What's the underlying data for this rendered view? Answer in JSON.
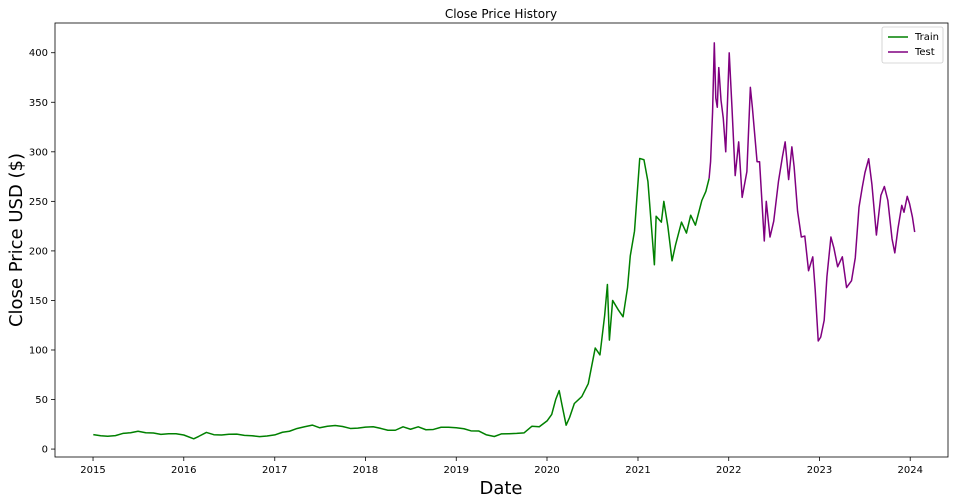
{
  "chart_data": {
    "type": "line",
    "title": "Close Price History",
    "xlabel": "Date",
    "ylabel": "Close Price USD ($)",
    "xlim": [
      "2014-08-01",
      "2024-06-01"
    ],
    "ylim": [
      -8,
      430
    ],
    "x_ticks": [
      "2015-01-01",
      "2016-01-01",
      "2017-01-01",
      "2018-01-01",
      "2019-01-01",
      "2020-01-01",
      "2021-01-01",
      "2022-01-01",
      "2023-01-01",
      "2024-01-01"
    ],
    "x_tick_labels": [
      "2015",
      "2016",
      "2017",
      "2018",
      "2019",
      "2020",
      "2021",
      "2022",
      "2023",
      "2024"
    ],
    "y_ticks": [
      0,
      50,
      100,
      150,
      200,
      250,
      300,
      350,
      400
    ],
    "y_tick_labels": [
      "0",
      "50",
      "100",
      "150",
      "200",
      "250",
      "300",
      "350",
      "400"
    ],
    "grid": false,
    "legend_position": "top-right",
    "series": [
      {
        "name": "Train",
        "color": "#008000",
        "points": [
          [
            "2015-01-02",
            14.6
          ],
          [
            "2015-02-01",
            13.5
          ],
          [
            "2015-03-01",
            13.0
          ],
          [
            "2015-04-01",
            13.6
          ],
          [
            "2015-05-01",
            15.8
          ],
          [
            "2015-06-01",
            16.5
          ],
          [
            "2015-07-01",
            18.0
          ],
          [
            "2015-08-01",
            16.5
          ],
          [
            "2015-09-01",
            16.2
          ],
          [
            "2015-10-01",
            14.8
          ],
          [
            "2015-11-01",
            15.4
          ],
          [
            "2015-12-01",
            15.5
          ],
          [
            "2016-01-01",
            14.2
          ],
          [
            "2016-02-10",
            10.4
          ],
          [
            "2016-03-01",
            12.8
          ],
          [
            "2016-04-01",
            16.8
          ],
          [
            "2016-05-01",
            14.5
          ],
          [
            "2016-06-01",
            14.2
          ],
          [
            "2016-07-01",
            15.0
          ],
          [
            "2016-08-01",
            15.1
          ],
          [
            "2016-09-01",
            13.8
          ],
          [
            "2016-10-01",
            13.5
          ],
          [
            "2016-11-01",
            12.6
          ],
          [
            "2016-12-01",
            13.2
          ],
          [
            "2017-01-01",
            14.3
          ],
          [
            "2017-02-01",
            17.0
          ],
          [
            "2017-03-01",
            18.0
          ],
          [
            "2017-04-01",
            20.8
          ],
          [
            "2017-05-01",
            22.5
          ],
          [
            "2017-06-01",
            24.2
          ],
          [
            "2017-07-01",
            21.5
          ],
          [
            "2017-08-01",
            23.0
          ],
          [
            "2017-09-01",
            23.8
          ],
          [
            "2017-10-01",
            22.8
          ],
          [
            "2017-11-01",
            20.8
          ],
          [
            "2017-12-01",
            21.1
          ],
          [
            "2018-01-01",
            22.2
          ],
          [
            "2018-02-01",
            22.5
          ],
          [
            "2018-03-01",
            21.0
          ],
          [
            "2018-04-01",
            19.0
          ],
          [
            "2018-05-01",
            19.0
          ],
          [
            "2018-06-01",
            22.5
          ],
          [
            "2018-07-01",
            20.0
          ],
          [
            "2018-08-01",
            22.5
          ],
          [
            "2018-09-01",
            19.5
          ],
          [
            "2018-10-01",
            19.8
          ],
          [
            "2018-11-01",
            22.0
          ],
          [
            "2018-12-01",
            22.0
          ],
          [
            "2019-01-01",
            21.5
          ],
          [
            "2019-02-01",
            20.5
          ],
          [
            "2019-03-01",
            18.4
          ],
          [
            "2019-04-01",
            18.3
          ],
          [
            "2019-05-01",
            14.5
          ],
          [
            "2019-06-03",
            12.7
          ],
          [
            "2019-07-01",
            15.3
          ],
          [
            "2019-08-01",
            15.5
          ],
          [
            "2019-09-01",
            15.8
          ],
          [
            "2019-10-01",
            16.4
          ],
          [
            "2019-11-01",
            23.0
          ],
          [
            "2019-12-01",
            22.5
          ],
          [
            "2020-01-02",
            28.6
          ],
          [
            "2020-01-20",
            35.0
          ],
          [
            "2020-02-05",
            50.0
          ],
          [
            "2020-02-19",
            59.0
          ],
          [
            "2020-03-01",
            45.0
          ],
          [
            "2020-03-18",
            24.1
          ],
          [
            "2020-04-01",
            32.0
          ],
          [
            "2020-04-20",
            46.0
          ],
          [
            "2020-05-20",
            53.0
          ],
          [
            "2020-06-15",
            66.0
          ],
          [
            "2020-07-06",
            93.0
          ],
          [
            "2020-07-13",
            102.0
          ],
          [
            "2020-08-01",
            95.0
          ],
          [
            "2020-08-20",
            135.0
          ],
          [
            "2020-08-31",
            166.1
          ],
          [
            "2020-09-08",
            110.0
          ],
          [
            "2020-09-21",
            150.0
          ],
          [
            "2020-10-15",
            140.0
          ],
          [
            "2020-11-02",
            133.5
          ],
          [
            "2020-11-20",
            163.0
          ],
          [
            "2020-12-01",
            195.0
          ],
          [
            "2020-12-18",
            220.0
          ],
          [
            "2021-01-08",
            293.3
          ],
          [
            "2021-01-25",
            292.0
          ],
          [
            "2021-02-10",
            270.0
          ],
          [
            "2021-03-08",
            186.0
          ],
          [
            "2021-03-15",
            235.0
          ],
          [
            "2021-04-05",
            229.0
          ],
          [
            "2021-04-15",
            250.0
          ],
          [
            "2021-05-01",
            225.0
          ],
          [
            "2021-05-18",
            190.0
          ],
          [
            "2021-06-01",
            206.0
          ],
          [
            "2021-06-25",
            229.0
          ],
          [
            "2021-07-15",
            218.0
          ],
          [
            "2021-08-01",
            236.0
          ],
          [
            "2021-08-20",
            226.0
          ],
          [
            "2021-09-15",
            251.0
          ],
          [
            "2021-10-01",
            260.0
          ],
          [
            "2021-10-14",
            273.0
          ]
        ]
      },
      {
        "name": "Test",
        "color": "#800080",
        "points": [
          [
            "2021-10-14",
            273.0
          ],
          [
            "2021-10-20",
            290.0
          ],
          [
            "2021-10-28",
            340.0
          ],
          [
            "2021-11-04",
            409.9
          ],
          [
            "2021-11-10",
            354.0
          ],
          [
            "2021-11-16",
            345.0
          ],
          [
            "2021-11-22",
            385.0
          ],
          [
            "2021-12-01",
            352.0
          ],
          [
            "2021-12-10",
            334.0
          ],
          [
            "2021-12-20",
            300.0
          ],
          [
            "2022-01-03",
            399.9
          ],
          [
            "2022-01-14",
            345.0
          ],
          [
            "2022-01-27",
            276.0
          ],
          [
            "2022-02-10",
            310.0
          ],
          [
            "2022-02-24",
            254.0
          ],
          [
            "2022-03-15",
            280.0
          ],
          [
            "2022-03-29",
            365.0
          ],
          [
            "2022-04-06",
            345.0
          ],
          [
            "2022-04-25",
            290.0
          ],
          [
            "2022-05-05",
            290.0
          ],
          [
            "2022-05-24",
            210.0
          ],
          [
            "2022-06-01",
            250.0
          ],
          [
            "2022-06-16",
            214.0
          ],
          [
            "2022-07-01",
            230.0
          ],
          [
            "2022-07-20",
            270.0
          ],
          [
            "2022-08-05",
            295.0
          ],
          [
            "2022-08-16",
            310.0
          ],
          [
            "2022-08-30",
            272.0
          ],
          [
            "2022-09-12",
            305.0
          ],
          [
            "2022-09-21",
            285.0
          ],
          [
            "2022-10-05",
            240.0
          ],
          [
            "2022-10-20",
            214.0
          ],
          [
            "2022-11-03",
            215.0
          ],
          [
            "2022-11-18",
            180.0
          ],
          [
            "2022-12-05",
            194.0
          ],
          [
            "2022-12-15",
            160.0
          ],
          [
            "2022-12-27",
            109.1
          ],
          [
            "2023-01-06",
            113.0
          ],
          [
            "2023-01-20",
            130.0
          ],
          [
            "2023-01-31",
            174.0
          ],
          [
            "2023-02-16",
            214.0
          ],
          [
            "2023-02-28",
            203.0
          ],
          [
            "2023-03-15",
            184.0
          ],
          [
            "2023-04-03",
            194.0
          ],
          [
            "2023-04-20",
            163.0
          ],
          [
            "2023-05-10",
            170.0
          ],
          [
            "2023-05-25",
            193.0
          ],
          [
            "2023-06-09",
            244.0
          ],
          [
            "2023-06-22",
            264.0
          ],
          [
            "2023-07-03",
            279.0
          ],
          [
            "2023-07-18",
            293.0
          ],
          [
            "2023-07-31",
            267.0
          ],
          [
            "2023-08-18",
            216.0
          ],
          [
            "2023-09-05",
            256.0
          ],
          [
            "2023-09-19",
            265.0
          ],
          [
            "2023-10-03",
            251.0
          ],
          [
            "2023-10-20",
            212.0
          ],
          [
            "2023-10-31",
            198.0
          ],
          [
            "2023-11-13",
            223.0
          ],
          [
            "2023-11-28",
            246.0
          ],
          [
            "2023-12-07",
            239.0
          ],
          [
            "2023-12-20",
            255.0
          ],
          [
            "2023-12-29",
            248.0
          ],
          [
            "2024-01-10",
            234.0
          ],
          [
            "2024-01-19",
            219.0
          ]
        ]
      }
    ]
  }
}
